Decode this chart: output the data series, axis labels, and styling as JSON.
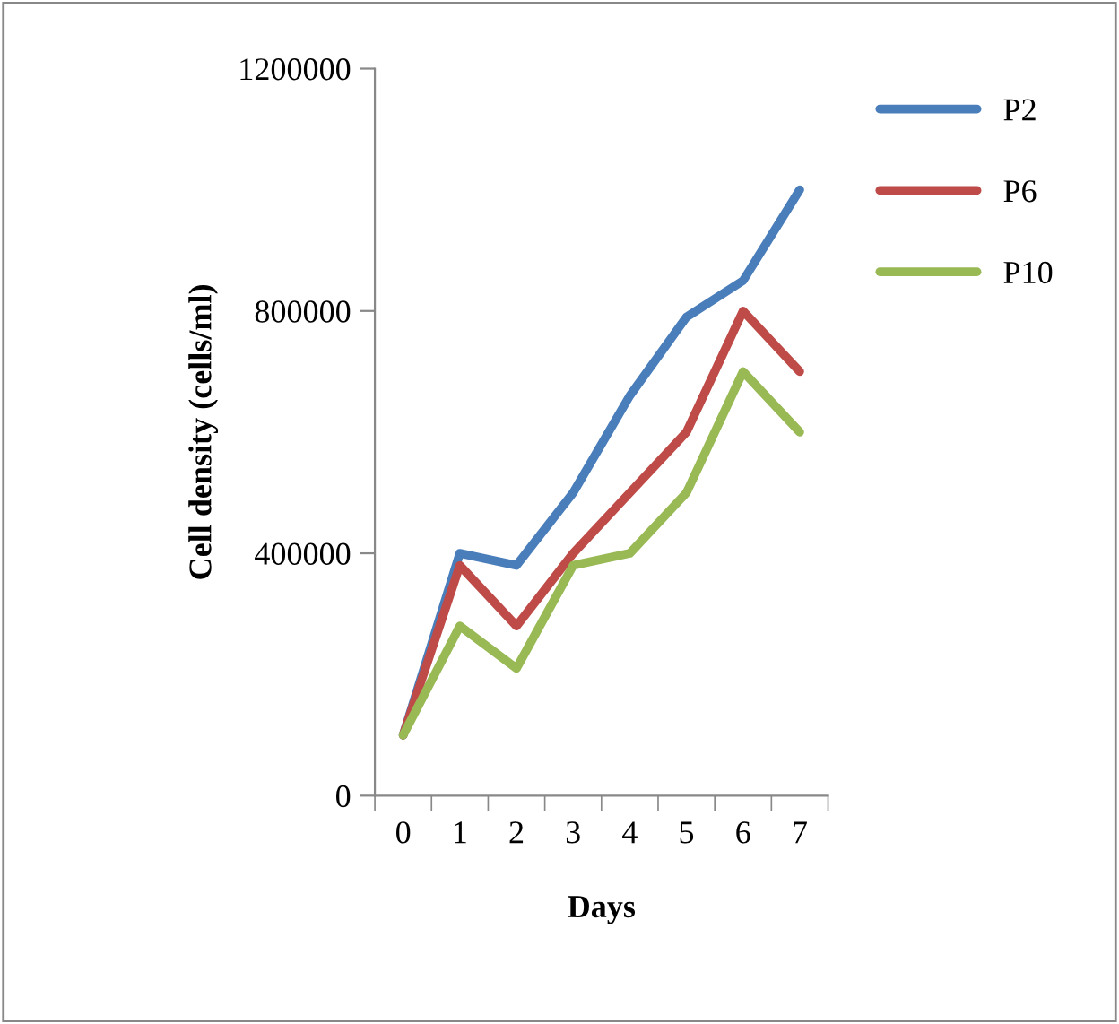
{
  "chart_data": {
    "type": "line",
    "xlabel": "Days",
    "ylabel": "Cell density (cells/ml)",
    "categories": [
      "0",
      "1",
      "2",
      "3",
      "4",
      "5",
      "6",
      "7"
    ],
    "series": [
      {
        "name": "P2",
        "color": "#4a7ebb",
        "values": [
          100000,
          400000,
          380000,
          500000,
          660000,
          790000,
          850000,
          1000000
        ]
      },
      {
        "name": "P6",
        "color": "#be4b48",
        "values": [
          100000,
          380000,
          280000,
          400000,
          500000,
          600000,
          800000,
          700000
        ]
      },
      {
        "name": "P10",
        "color": "#98b954",
        "values": [
          100000,
          280000,
          210000,
          380000,
          400000,
          500000,
          700000,
          600000
        ]
      }
    ],
    "ylim": [
      0,
      1200000
    ],
    "yticks": [
      0,
      400000,
      800000,
      1200000
    ],
    "grid": false,
    "legend": "right",
    "marker": "none",
    "line_style": "solid"
  }
}
